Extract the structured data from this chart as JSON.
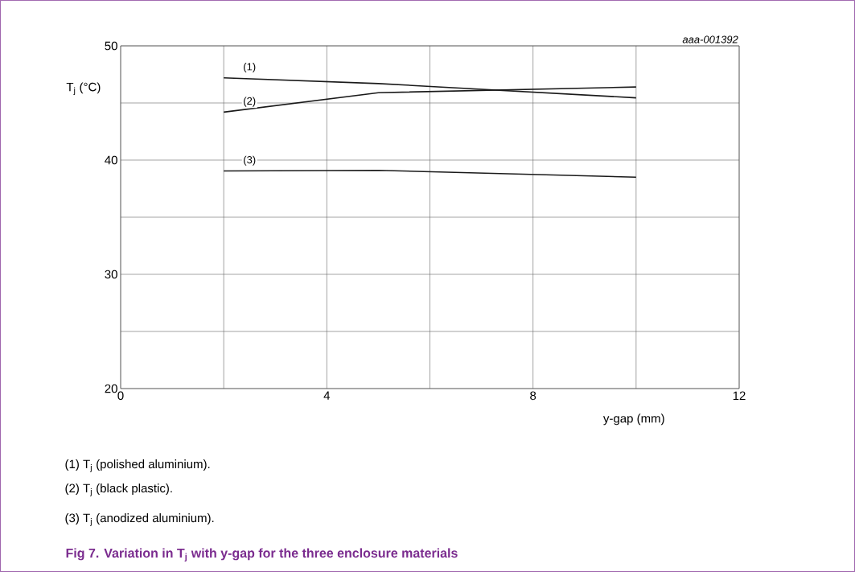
{
  "chart_data": {
    "type": "line",
    "title": "Fig 7.    Variation in T$_{j}$ with y-gap for the three enclosure materials",
    "xlabel": "y-gap (mm)",
    "ylabel": "T$_{j}$ (°C)",
    "xlim": [
      0,
      12
    ],
    "ylim": [
      20,
      50
    ],
    "xticks": [
      0,
      {
        "value": 2,
        "label": null
      },
      4,
      {
        "value": 6,
        "label": null
      },
      8,
      {
        "value": 10,
        "label": null
      },
      12
    ],
    "yticks": [
      20,
      {
        "value": 25,
        "label": null
      },
      30,
      {
        "value": 35,
        "label": null
      },
      40,
      {
        "value": 45,
        "label": null
      },
      50
    ],
    "grid": true,
    "legend": false,
    "marker": "none",
    "line_style": "solid",
    "series": [
      {
        "name": "(1)",
        "color": "#1a1a1a",
        "x": [
          2,
          5,
          10
        ],
        "values": [
          47.2,
          46.7,
          45.45
        ]
      },
      {
        "name": "(2)",
        "color": "#1a1a1a",
        "x": [
          2,
          5,
          10
        ],
        "values": [
          44.2,
          45.9,
          46.4
        ]
      },
      {
        "name": "(3)",
        "color": "#1a1a1a",
        "x": [
          2,
          5,
          10
        ],
        "values": [
          39.05,
          39.1,
          38.5
        ]
      }
    ],
    "annotations": [
      "aaa-001392",
      "(1)   T$_{j}$ (polished aluminium).",
      "(2)   T$_{j}$ (black plastic).",
      "(3)   T$_{j}$ (anodized aluminium)."
    ]
  }
}
